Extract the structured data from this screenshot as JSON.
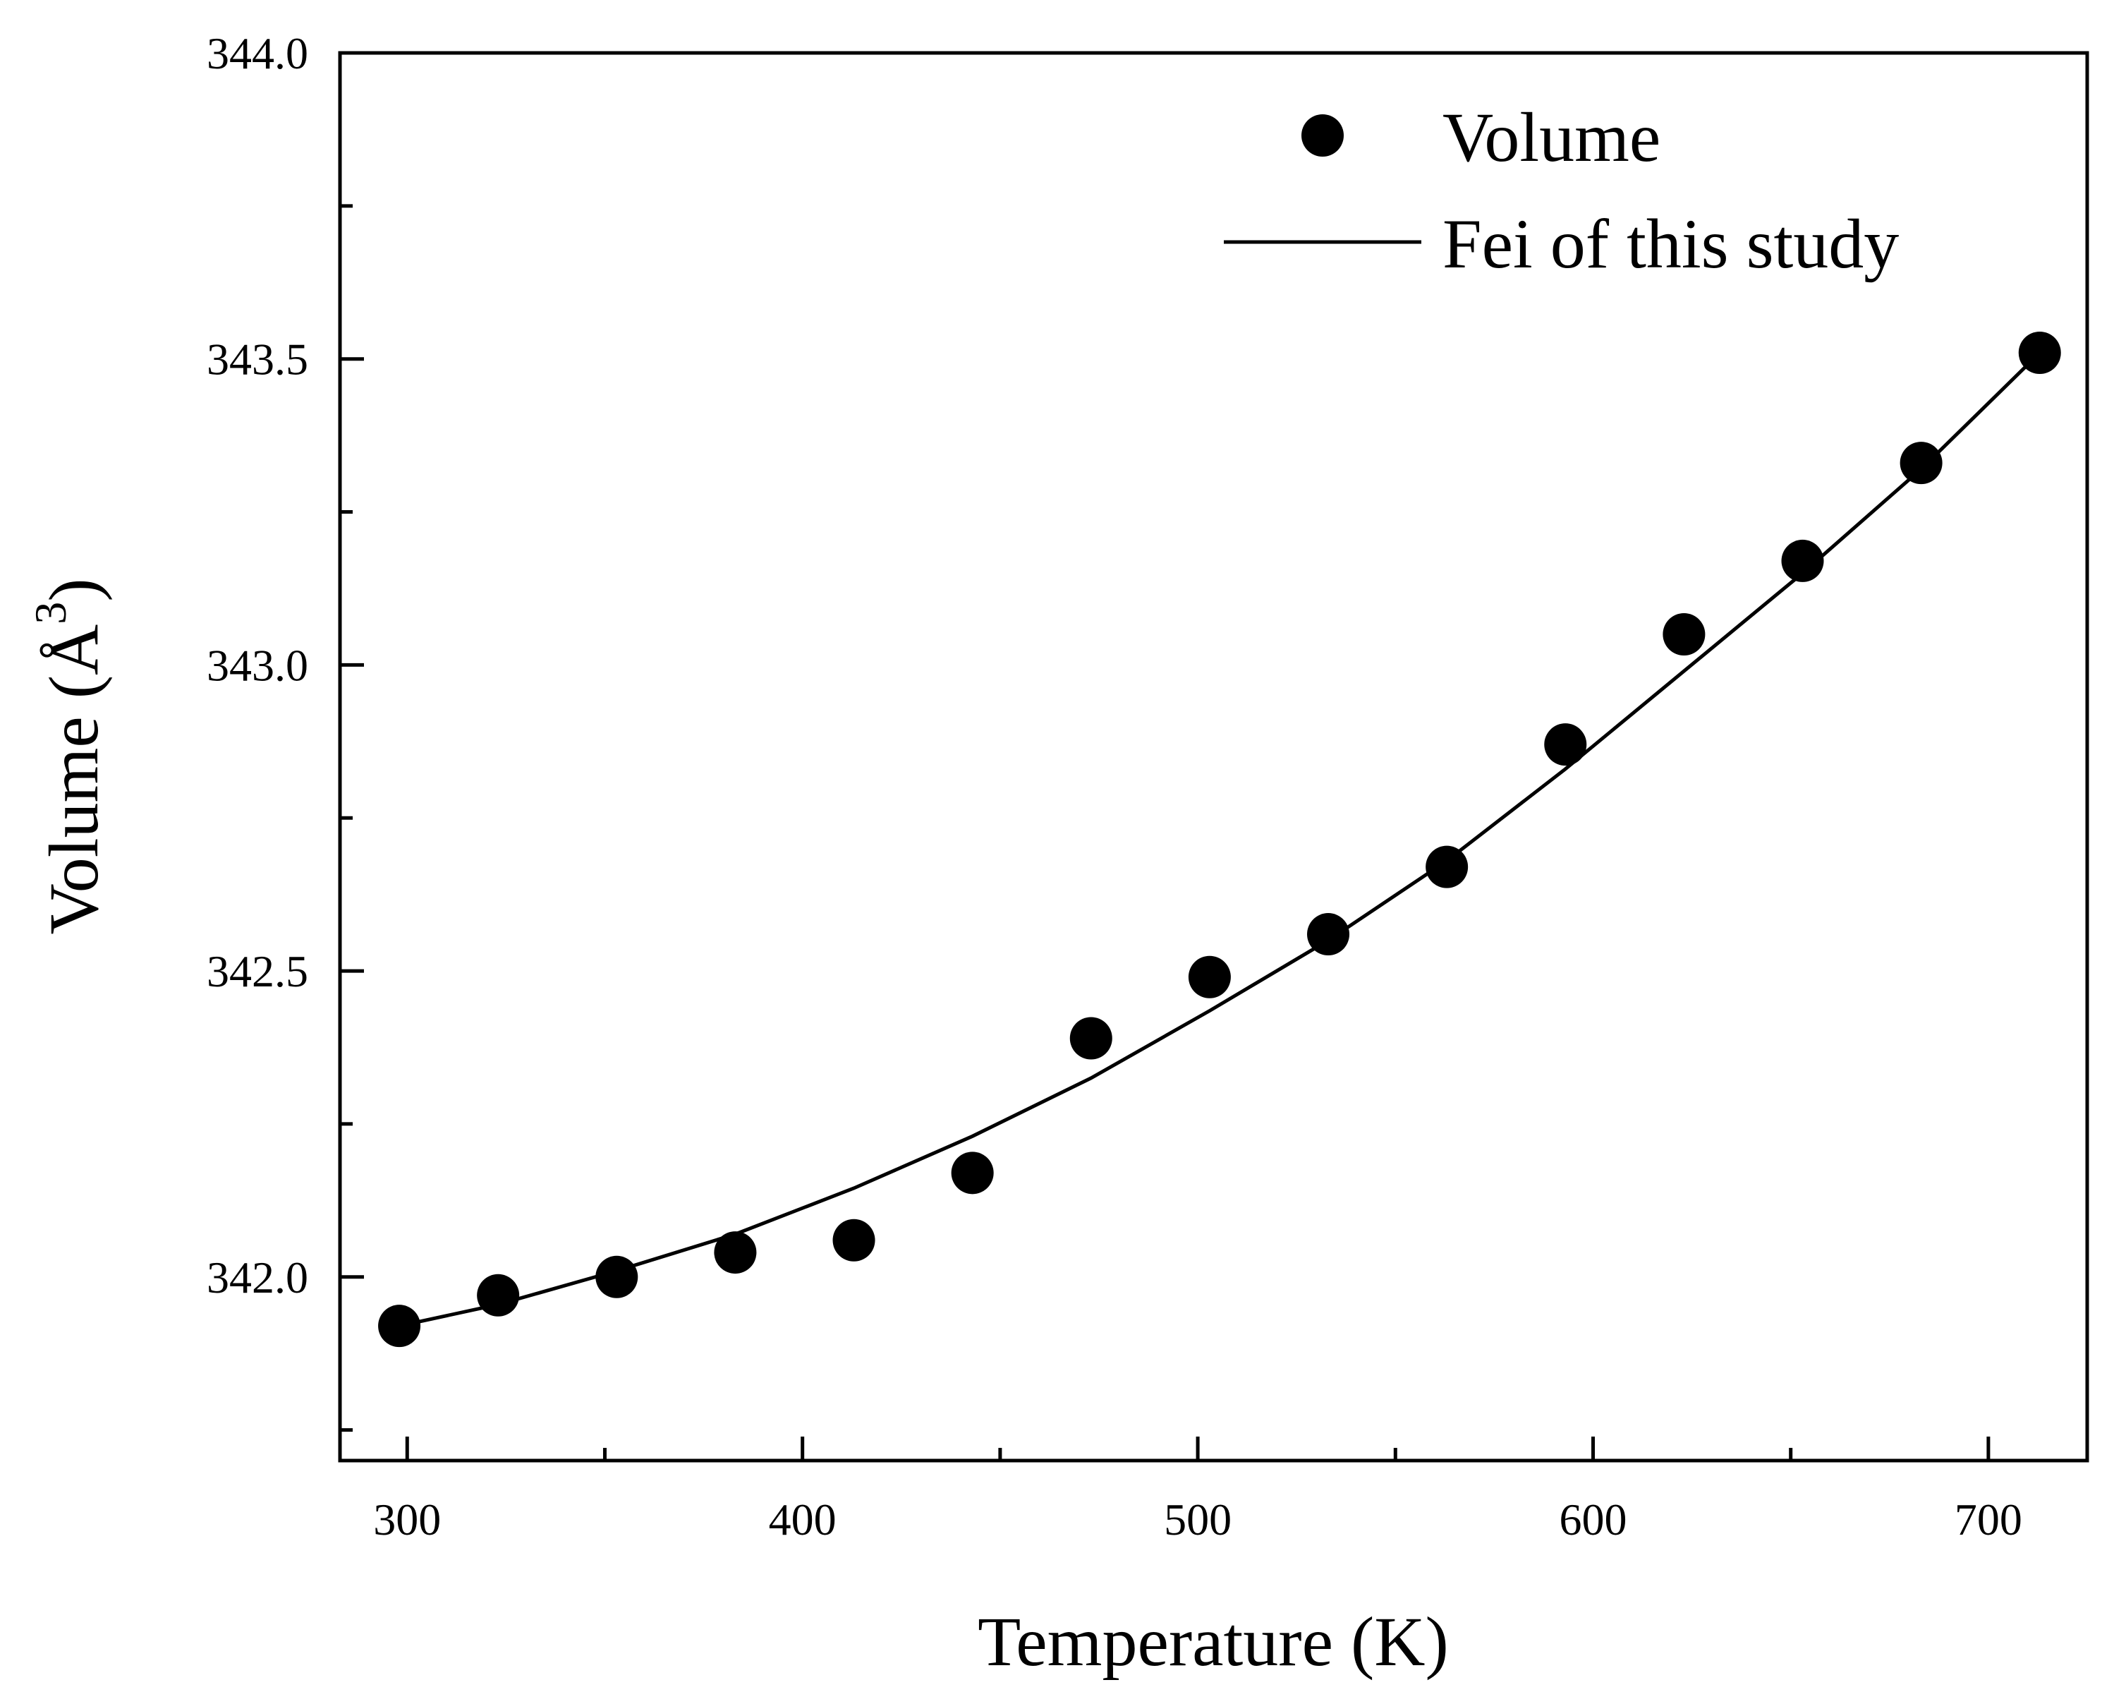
{
  "chart_data": {
    "type": "scatter",
    "title": "",
    "xlabel": "Temperature (K)",
    "ylabel": {
      "text": "Volume (Å",
      "superscript": "3",
      "close": ")"
    },
    "xlim": [
      283,
      725
    ],
    "ylim": [
      341.7,
      344.0
    ],
    "x_ticks": [
      300,
      400,
      500,
      600,
      700
    ],
    "x_tick_labels": [
      "300",
      "400",
      "500",
      "600",
      "700"
    ],
    "x_minor_ticks": [
      350,
      450,
      550,
      650
    ],
    "y_ticks": [
      342.0,
      342.5,
      343.0,
      343.5,
      344.0
    ],
    "y_tick_labels": [
      "342.0",
      "342.5",
      "343.0",
      "343.5",
      "344.0"
    ],
    "y_minor_ticks": [
      341.75,
      342.25,
      342.75,
      343.25,
      343.75
    ],
    "grid": false,
    "legend_position": "top-right",
    "series": [
      {
        "name": "Volume",
        "kind": "scatter",
        "color": "#000000",
        "x": [
          298,
          323,
          353,
          383,
          413,
          443,
          473,
          503,
          533,
          563,
          593,
          623,
          653,
          683,
          713
        ],
        "y": [
          341.92,
          341.97,
          342.0,
          342.04,
          342.06,
          342.17,
          342.39,
          342.49,
          342.56,
          342.67,
          342.87,
          343.05,
          343.17,
          343.33,
          343.51
        ]
      },
      {
        "name": "Fei of this study",
        "kind": "line",
        "color": "#000000",
        "x": [
          298,
          323,
          353,
          383,
          413,
          443,
          473,
          503,
          533,
          563,
          593,
          623,
          653,
          683,
          713
        ],
        "y": [
          341.92,
          341.955,
          342.01,
          342.07,
          342.145,
          342.23,
          342.325,
          342.435,
          342.55,
          342.68,
          342.83,
          342.99,
          343.15,
          343.32,
          343.51
        ]
      }
    ]
  }
}
